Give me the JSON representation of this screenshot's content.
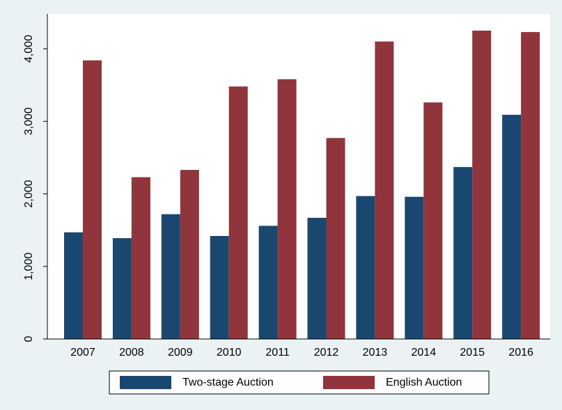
{
  "chart_data": {
    "type": "bar",
    "categories": [
      "2007",
      "2008",
      "2009",
      "2010",
      "2011",
      "2012",
      "2013",
      "2014",
      "2015",
      "2016"
    ],
    "series": [
      {
        "name": "Two-stage Auction",
        "color": "#1a476f",
        "values": [
          1470,
          1390,
          1720,
          1420,
          1560,
          1670,
          1970,
          1960,
          2370,
          3090
        ]
      },
      {
        "name": "English Auction",
        "color": "#90353b",
        "values": [
          3840,
          2230,
          2330,
          3480,
          3580,
          2770,
          4100,
          3260,
          4250,
          4230
        ]
      }
    ],
    "ylim": [
      0,
      4480
    ],
    "yticks": [
      0,
      {
        "value": 1000,
        "label": "1,000"
      },
      {
        "value": 2000,
        "label": "2,000"
      },
      {
        "value": 3000,
        "label": "3,000"
      },
      {
        "value": 4000,
        "label": "4,000"
      }
    ],
    "grid": false,
    "legend": "bottom"
  }
}
